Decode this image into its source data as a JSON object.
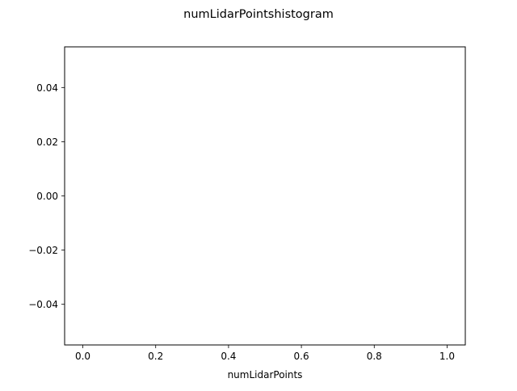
{
  "chart_data": {
    "type": "bar",
    "title": "numLidarPointshistogram",
    "xlabel": "numLidarPoints",
    "ylabel": "",
    "values": [],
    "xlim": [
      -0.05,
      1.05
    ],
    "ylim": [
      -0.055,
      0.055
    ],
    "xticks": [
      0.0,
      0.2,
      0.4,
      0.6,
      0.8,
      1.0
    ],
    "xtick_labels": [
      "0.0",
      "0.2",
      "0.4",
      "0.6",
      "0.8",
      "1.0"
    ],
    "yticks": [
      0.04,
      0.02,
      0.0,
      -0.02,
      -0.04
    ],
    "ytick_labels": [
      "0.04",
      "0.02",
      "0.00",
      "−0.02",
      "−0.04"
    ],
    "grid": false,
    "legend": "none"
  },
  "colors": {
    "axes": "#000000",
    "background": "#ffffff"
  }
}
